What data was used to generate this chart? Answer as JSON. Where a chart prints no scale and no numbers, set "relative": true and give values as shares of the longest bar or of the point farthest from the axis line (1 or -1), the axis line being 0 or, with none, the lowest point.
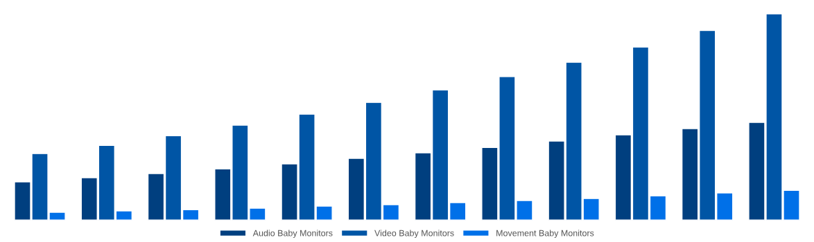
{
  "chart_data": {
    "type": "bar",
    "relative": true,
    "legend": "bottom",
    "grid": false,
    "categories": [
      null,
      null,
      null,
      null,
      null,
      null,
      null,
      null,
      null,
      null,
      null,
      null
    ],
    "series": [
      {
        "name": "Audio Baby Monitors",
        "color": "#003f7f",
        "values": [
          0.185,
          0.205,
          0.225,
          0.248,
          0.272,
          0.299,
          0.326,
          0.352,
          0.383,
          0.413,
          0.443,
          0.473
        ]
      },
      {
        "name": "Video Baby Monitors",
        "color": "#0055a5",
        "values": [
          0.322,
          0.362,
          0.409,
          0.46,
          0.513,
          0.57,
          0.631,
          0.695,
          0.765,
          0.839,
          0.919,
          1
        ]
      },
      {
        "name": "Movement Baby Monitors",
        "color": "#0070e8",
        "values": [
          0.037,
          0.044,
          0.05,
          0.057,
          0.067,
          0.074,
          0.084,
          0.094,
          0.104,
          0.117,
          0.131,
          0.144
        ]
      }
    ]
  }
}
